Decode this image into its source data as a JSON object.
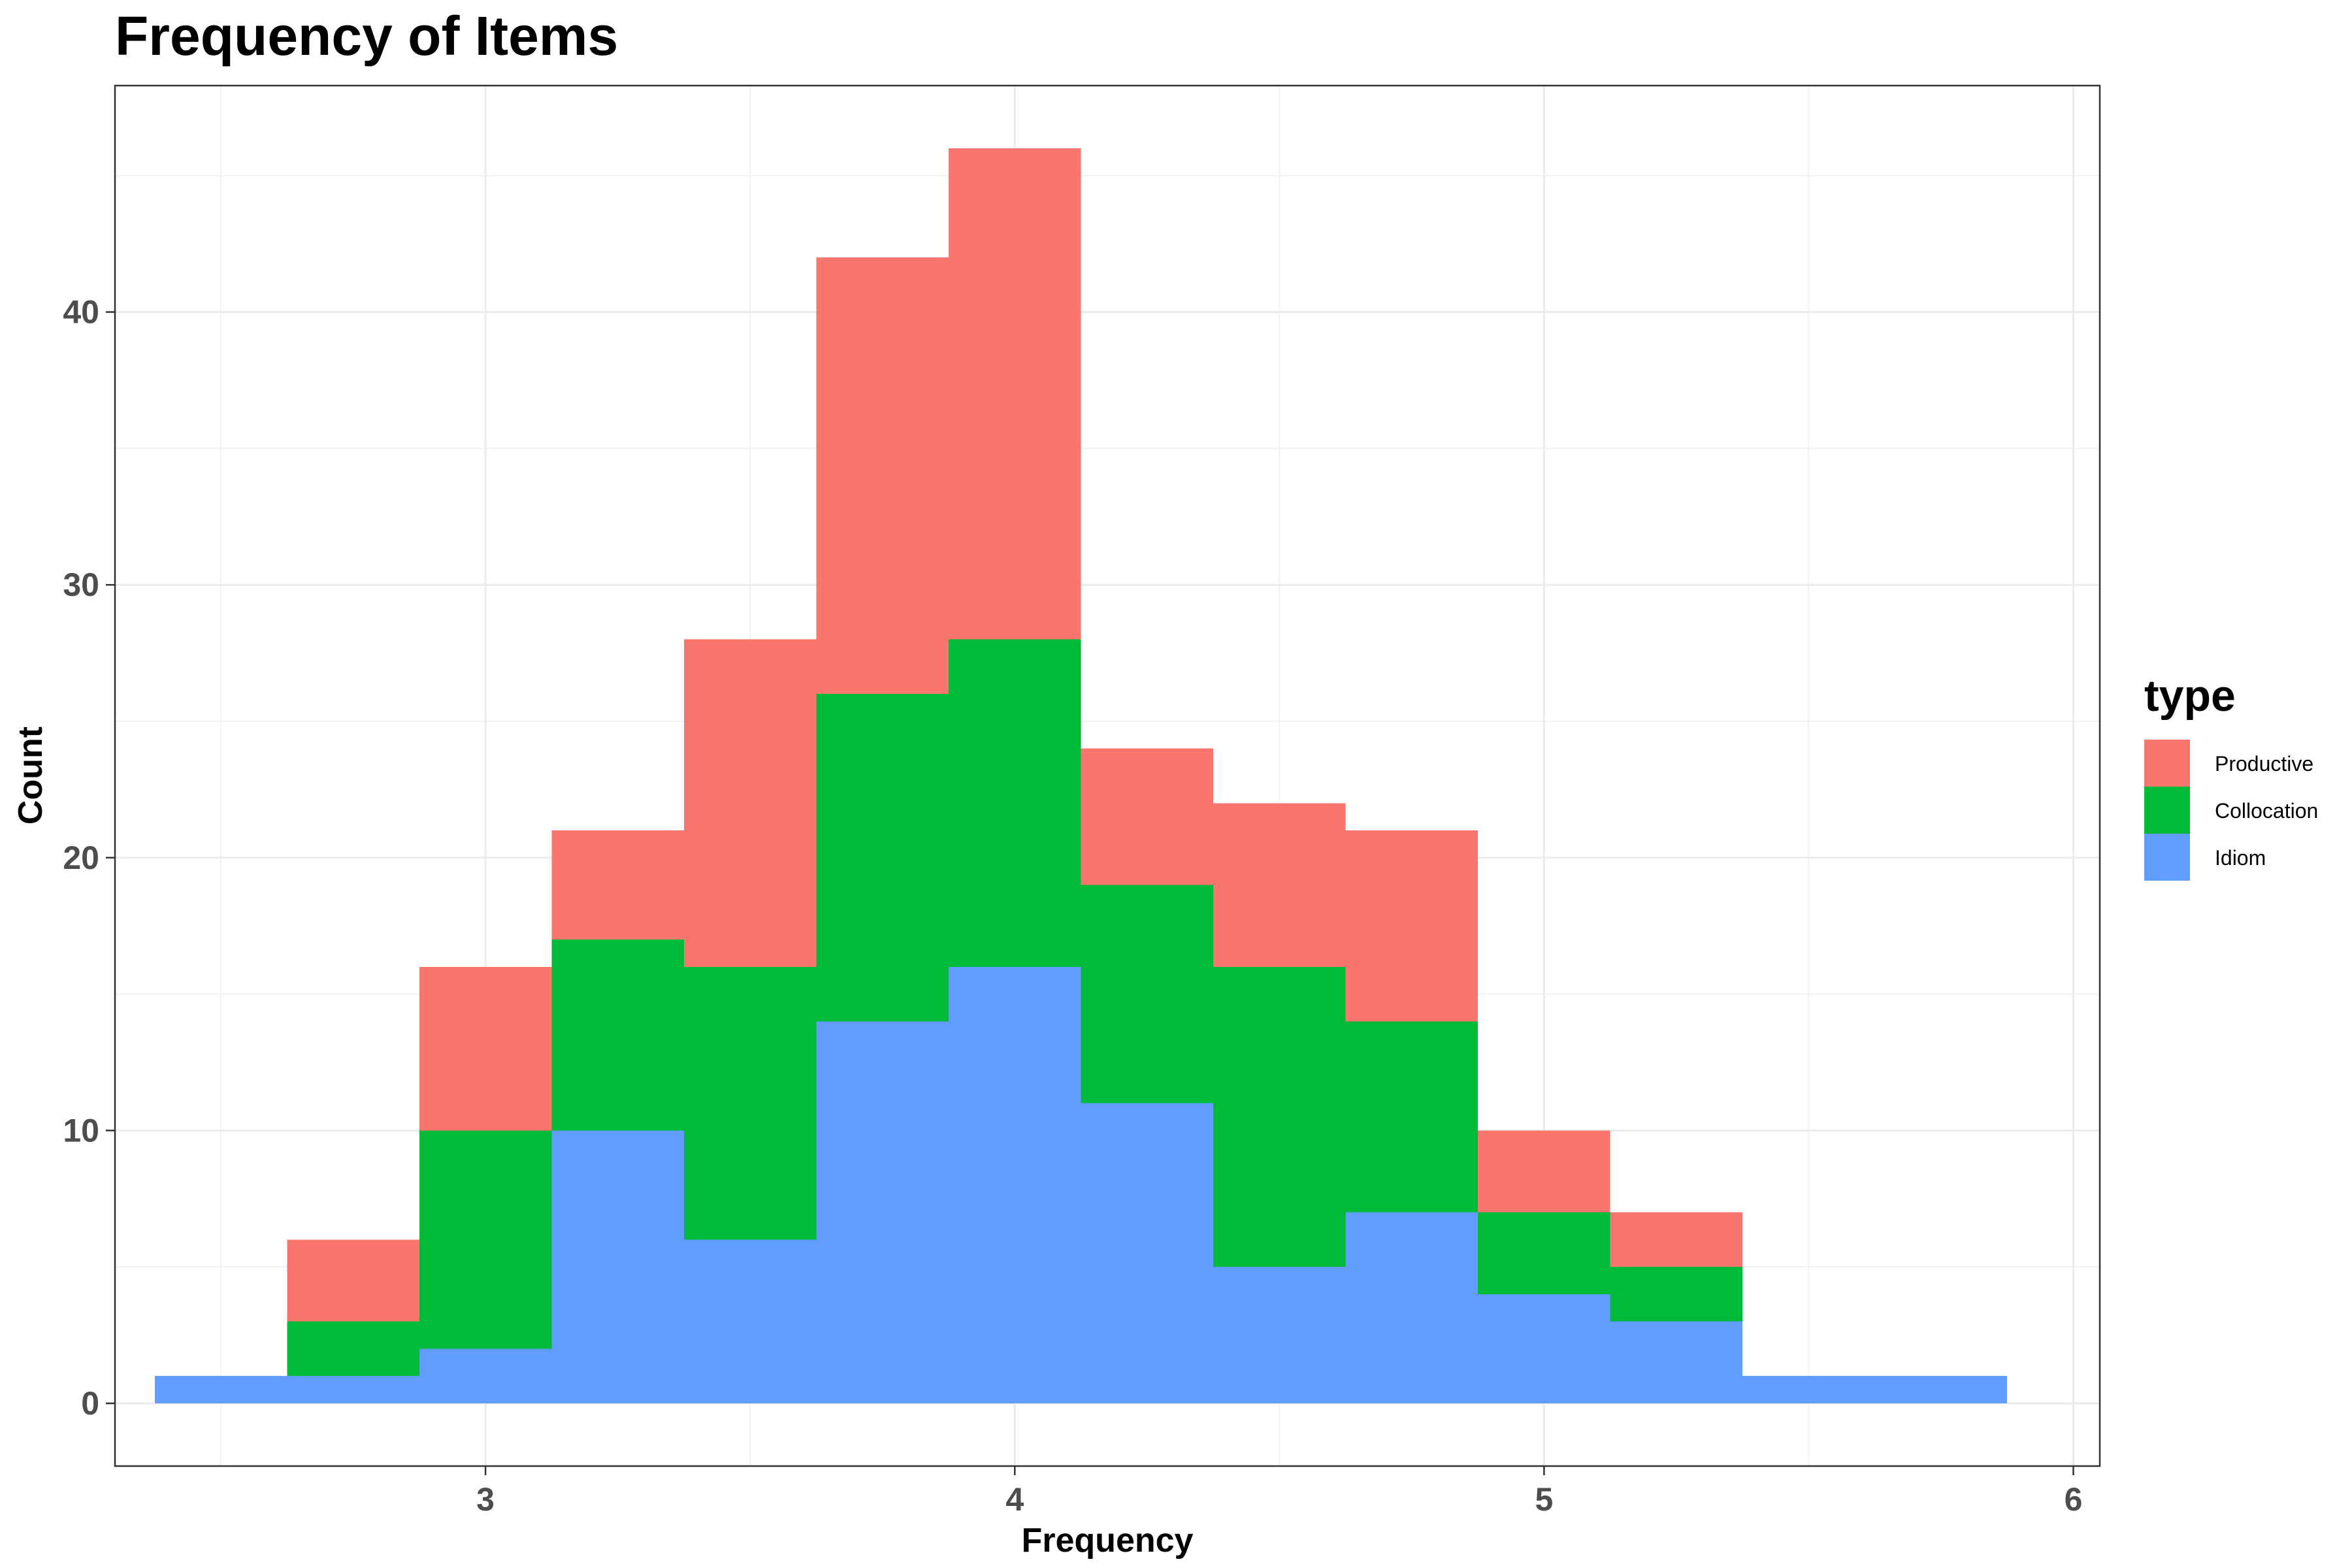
{
  "chart_data": {
    "type": "bar",
    "subtype": "stacked-histogram",
    "title": "Frequency of Items",
    "xlabel": "Frequency",
    "ylabel": "Count",
    "xlim": [
      2.3,
      6.05
    ],
    "ylim": [
      -2.3,
      48.3
    ],
    "x_ticks": [
      3,
      4,
      5,
      6
    ],
    "x_tick_labels": [
      "3",
      "4",
      "5",
      "6"
    ],
    "y_ticks": [
      0,
      10,
      20,
      30,
      40
    ],
    "y_tick_labels": [
      "0",
      "10",
      "20",
      "30",
      "40"
    ],
    "grid": true,
    "legend_position": "right",
    "legend_title": "type",
    "bin_width": 0.25,
    "x": [
      2.5,
      2.75,
      3.0,
      3.25,
      3.5,
      3.75,
      4.0,
      4.25,
      4.5,
      4.75,
      5.0,
      5.25,
      5.5,
      5.75
    ],
    "series": [
      {
        "name": "Idiom",
        "color": "#619cff",
        "values": [
          1,
          1,
          2,
          10,
          6,
          14,
          16,
          11,
          5,
          7,
          4,
          3,
          1,
          1
        ]
      },
      {
        "name": "Collocation",
        "color": "#00ba38",
        "values": [
          0,
          2,
          8,
          7,
          10,
          12,
          12,
          8,
          11,
          7,
          3,
          2,
          0,
          0
        ]
      },
      {
        "name": "Productive",
        "color": "#f8766d",
        "values": [
          0,
          3,
          6,
          4,
          12,
          16,
          18,
          5,
          6,
          7,
          3,
          2,
          0,
          0
        ]
      }
    ],
    "legend_order": [
      "Productive",
      "Collocation",
      "Idiom"
    ]
  }
}
